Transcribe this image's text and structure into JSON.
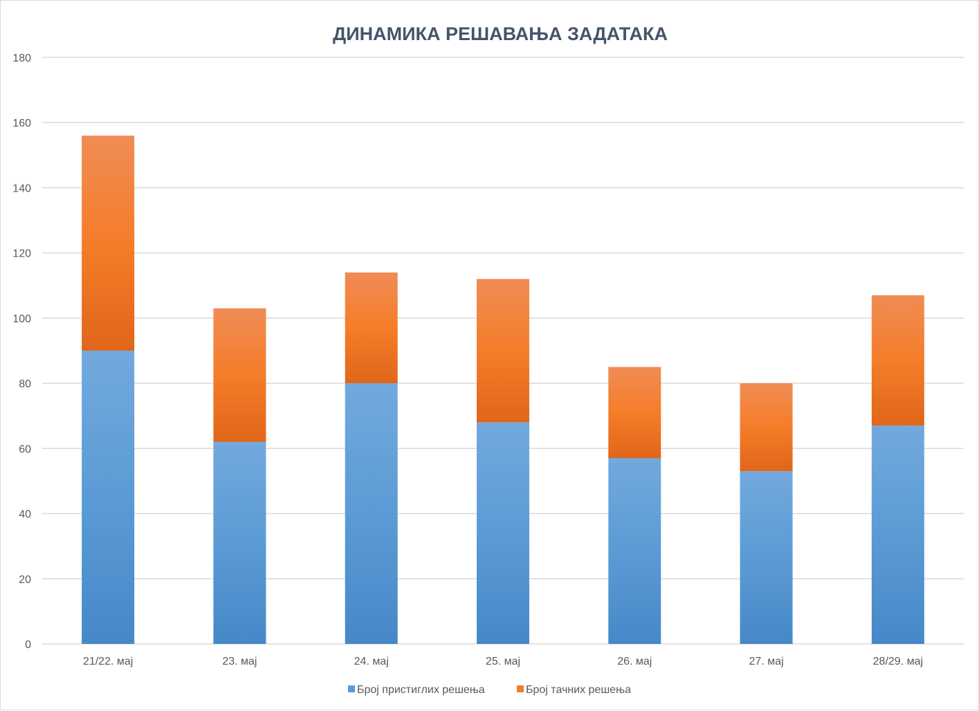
{
  "chart_data": {
    "type": "bar",
    "stacked": true,
    "title": "ДИНАМИКА РЕШАВАЊА ЗАДАТАКА",
    "xlabel": "",
    "ylabel": "",
    "categories": [
      "21/22. мај",
      "23. мај",
      "24. мај",
      "25. мај",
      "26. мај",
      "27. мај",
      "28/29. мај"
    ],
    "series": [
      {
        "name": "Број пристиглих решења",
        "values": [
          90,
          62,
          80,
          68,
          57,
          53,
          67
        ],
        "color": "#5b9bd5"
      },
      {
        "name": "Број тачних решења",
        "values": [
          66,
          41,
          34,
          44,
          28,
          27,
          40
        ],
        "color": "#ed7d31"
      }
    ],
    "ylim": [
      0,
      180
    ],
    "yticks": [
      0,
      20,
      40,
      60,
      80,
      100,
      120,
      140,
      160,
      180
    ],
    "grid": true,
    "legend_position": "bottom"
  }
}
